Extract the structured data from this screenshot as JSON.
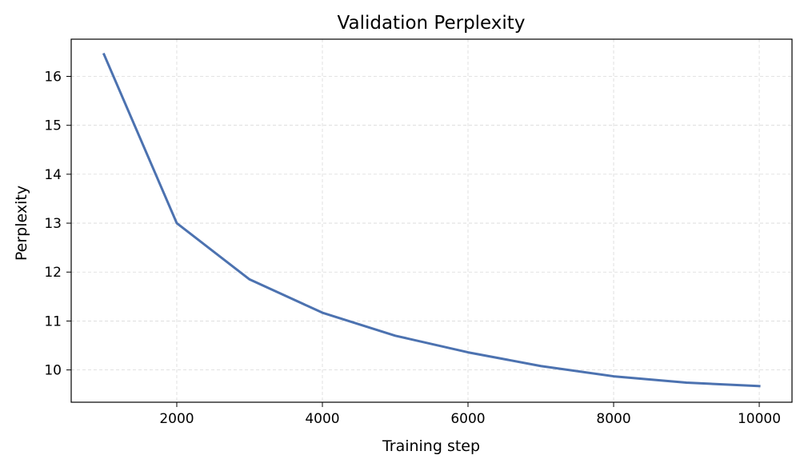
{
  "chart_data": {
    "type": "line",
    "title": "Validation Perplexity",
    "xlabel": "Training step",
    "ylabel": "Perplexity",
    "xlim": [
      550,
      10450
    ],
    "ylim": [
      9.34,
      16.76
    ],
    "xticks": [
      2000,
      4000,
      6000,
      8000,
      10000
    ],
    "yticks": [
      10,
      11,
      12,
      13,
      14,
      15,
      16
    ],
    "grid": true,
    "series": [
      {
        "color": "#4c72b0",
        "x": [
          1000,
          2000,
          3000,
          4000,
          5000,
          6000,
          7000,
          8000,
          9000,
          10000
        ],
        "y": [
          16.45,
          13.0,
          11.85,
          11.17,
          10.7,
          10.36,
          10.08,
          9.87,
          9.74,
          9.67
        ]
      }
    ]
  }
}
